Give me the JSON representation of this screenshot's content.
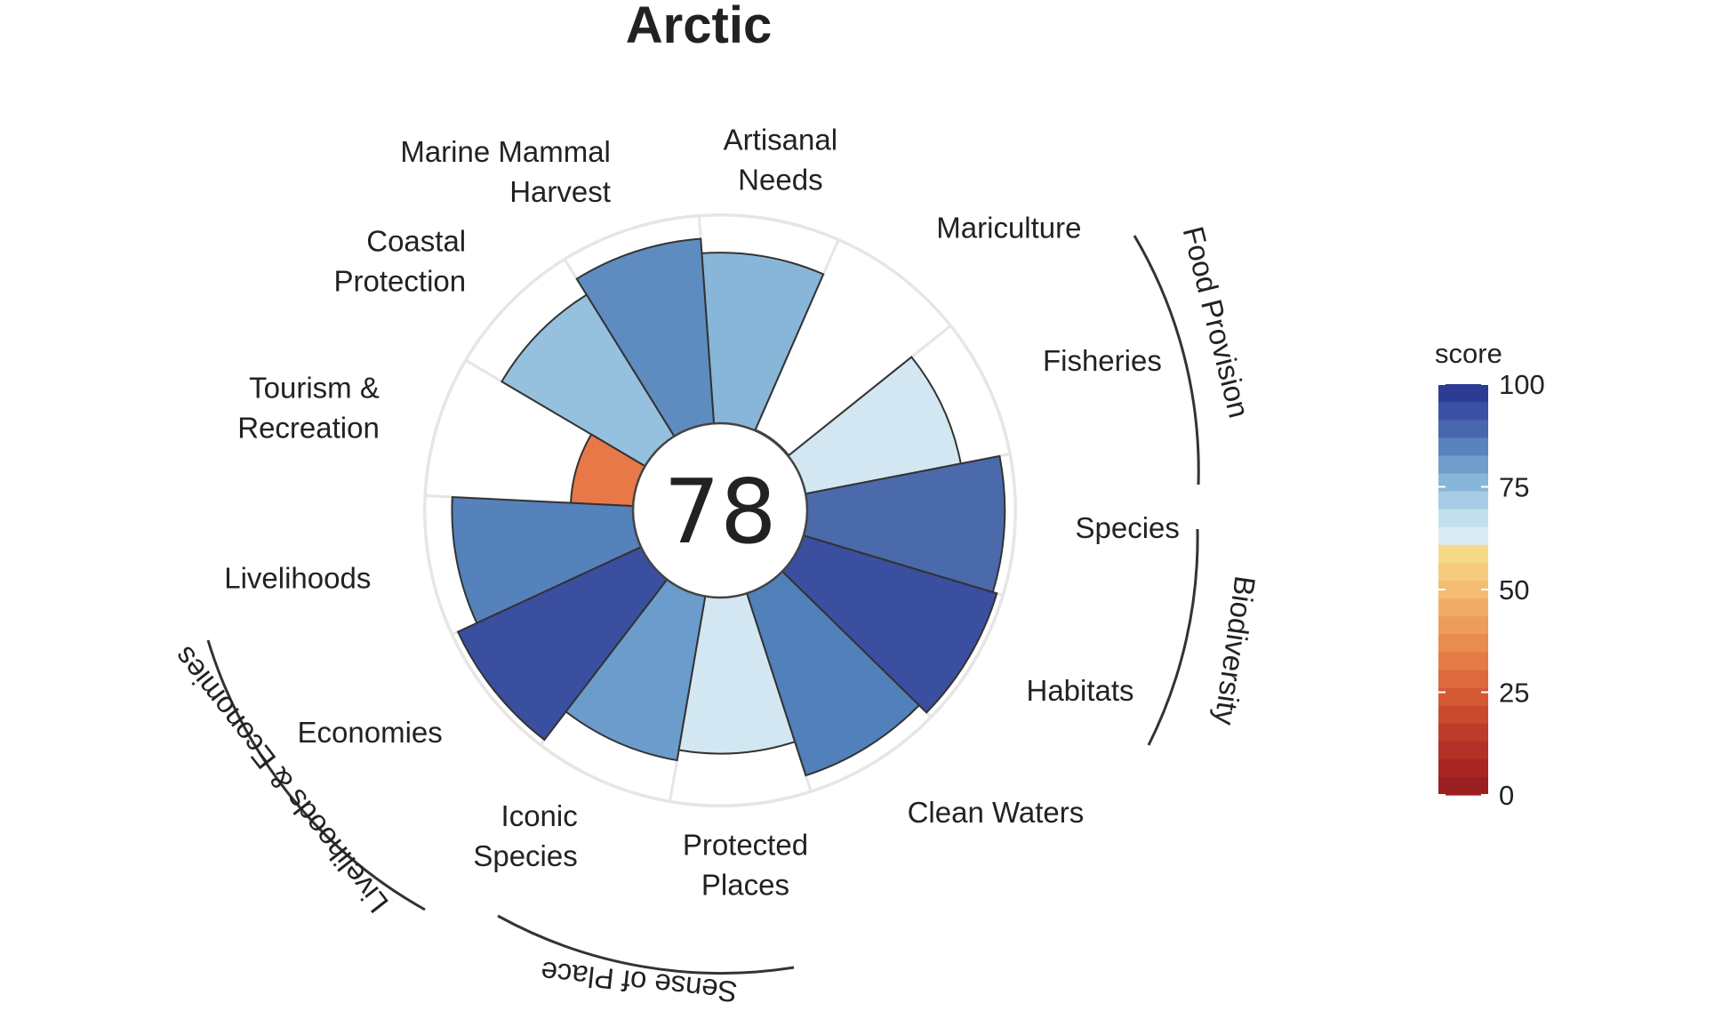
{
  "chart_data": {
    "type": "polar-bar",
    "title": "Arctic",
    "overall_score": "78",
    "scale_max": 100,
    "goals": [
      {
        "name": "Fisheries",
        "label_lines": [
          "Fisheries"
        ],
        "score": 76,
        "color": "#d2e7f1"
      },
      {
        "name": "Mariculture",
        "label_lines": [
          "Mariculture"
        ],
        "score": 0,
        "color": "#d2e7f1"
      },
      {
        "name": "Artisanal Needs",
        "label_lines": [
          "Artisanal",
          "Needs"
        ],
        "score": 82,
        "color": "#88b6d8"
      },
      {
        "name": "Marine Mammal Harvest",
        "label_lines": [
          "Marine Mammal",
          "Harvest"
        ],
        "score": 89,
        "color": "#5f8cc0"
      },
      {
        "name": "Coastal Protection",
        "label_lines": [
          "Coastal",
          "Protection"
        ],
        "score": 80,
        "color": "#95c1de"
      },
      {
        "name": "Tourism & Recreation",
        "label_lines": [
          "Tourism &",
          "Recreation"
        ],
        "score": 30,
        "color": "#e97848"
      },
      {
        "name": "Livelihoods",
        "label_lines": [
          "Livelihoods"
        ],
        "score": 87,
        "color": "#5682bb"
      },
      {
        "name": "Economies",
        "label_lines": [
          "Economies"
        ],
        "score": 97,
        "color": "#3a4fa0"
      },
      {
        "name": "Iconic Species",
        "label_lines": [
          "Iconic",
          "Species"
        ],
        "score": 80,
        "color": "#6b9ccb"
      },
      {
        "name": "Protected Places",
        "label_lines": [
          "Protected",
          "Places"
        ],
        "score": 75,
        "color": "#d2e7f1"
      },
      {
        "name": "Clean Waters",
        "label_lines": [
          "Clean Waters"
        ],
        "score": 92,
        "color": "#5180bb"
      },
      {
        "name": "Habitats",
        "label_lines": [
          "Habitats"
        ],
        "score": 97,
        "color": "#3a4fa0"
      },
      {
        "name": "Species",
        "label_lines": [
          "Species"
        ],
        "score": 95,
        "color": "#4a6aab"
      }
    ],
    "groups": [
      "Food Provision",
      "Biodiversity",
      "Livelihoods & Economies",
      "Sense of Place"
    ],
    "legend": {
      "title": "score",
      "ticks": [
        "100",
        "75",
        "50",
        "25",
        "0"
      ],
      "tick_values": [
        100,
        75,
        50,
        25,
        0
      ],
      "colors_top_to_bottom": [
        "#2e3b94",
        "#3a51a3",
        "#4866ab",
        "#5a82bb",
        "#6f9dcc",
        "#88b6d8",
        "#a5cce4",
        "#c3e0ee",
        "#dbecf5",
        "#f7d98a",
        "#f6cb7f",
        "#f4bd74",
        "#f1ad67",
        "#ed9c5b",
        "#e98c50",
        "#e47b45",
        "#dd6a3d",
        "#d45a35",
        "#ca4a2e",
        "#bf3b29",
        "#b33026",
        "#a72623",
        "#9b1e20"
      ]
    }
  }
}
